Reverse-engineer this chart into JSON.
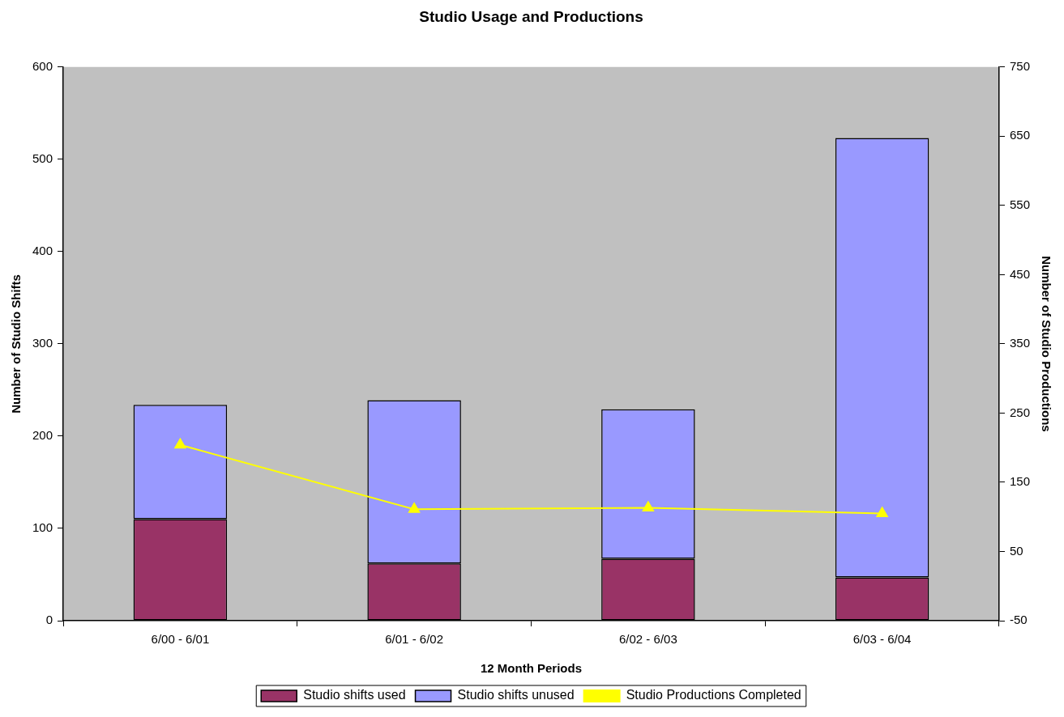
{
  "chart_data": {
    "type": "bar",
    "title": "Studio Usage and Productions",
    "xlabel": "12 Month Periods",
    "ylabel": "Number of Studio Shifts",
    "y2label": "Number of Studio Productions",
    "categories": [
      "6/00 - 6/01",
      "6/01 - 6/02",
      "6/02 - 6/03",
      "6/03 - 6/04"
    ],
    "stacked": true,
    "series": [
      {
        "name": "Studio shifts used",
        "color": "#993366",
        "values": [
          110,
          62,
          67,
          47
        ]
      },
      {
        "name": "Studio shifts unused",
        "color": "#9999ff",
        "values": [
          124,
          177,
          162,
          476
        ]
      },
      {
        "name": "Studio Productions Completed",
        "type": "line",
        "axis": "y2",
        "color": "#ffff00",
        "marker": "triangle",
        "values": [
          204,
          111,
          113,
          105
        ]
      }
    ],
    "ylim": [
      0,
      600
    ],
    "yticks": [
      0,
      100,
      200,
      300,
      400,
      500,
      600
    ],
    "y2lim": [
      -50,
      750
    ],
    "y2ticks": [
      -50,
      50,
      150,
      250,
      350,
      450,
      550,
      650,
      750
    ],
    "legend": "bottom"
  }
}
